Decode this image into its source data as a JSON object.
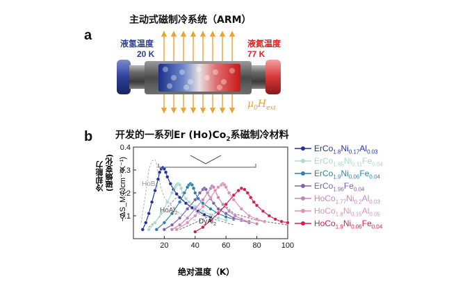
{
  "panel_a": {
    "letter": "a",
    "title": "主动式磁制冷系统（ARM）",
    "left_label": "液氢温度",
    "left_temp": "20 K",
    "right_label": "液氮温度",
    "right_temp": "77 K",
    "field_label_main": "μ",
    "field_label_sub0": "0",
    "field_label_H": "H",
    "field_label_sub": "ext",
    "colors": {
      "cold": "#2a3f8f",
      "hot": "#e02020",
      "field": "#f0a030"
    }
  },
  "panel_b": {
    "letter": "b",
    "title_pre": "开发的一系列Er (Ho)Co",
    "title_sub": "2",
    "title_post": "系磁制冷材料",
    "ylabel_cn_1": "冷却能力",
    "ylabel_cn_2": "(磁熵变化)",
    "xlabel": "绝对温度（K）"
  },
  "chart_data": {
    "type": "line",
    "xlabel": "绝对温度（K）",
    "ylabel": "−ΔS_M (Jcm⁻³K⁻¹)",
    "xlim": [
      0,
      100
    ],
    "ylim": [
      0,
      0.4
    ],
    "xticks": [
      "20",
      "40",
      "60",
      "80",
      "100"
    ],
    "yticks": [
      "0.1",
      "0.2",
      "0.3",
      "0.4"
    ],
    "legend_position": "right",
    "annotations": [
      {
        "text": "HoB",
        "sub": "2",
        "color": "#9a9a9a"
      },
      {
        "text": "HoAl",
        "sub": "2",
        "color": "#555555"
      },
      {
        "text": "DyAl",
        "sub": "2",
        "color": "#333333"
      }
    ],
    "reference_series": [
      {
        "x": [
          5,
          8,
          10,
          12,
          14,
          15,
          16,
          18,
          20,
          25,
          30,
          40
        ],
        "values": [
          0.07,
          0.2,
          0.3,
          0.34,
          0.345,
          0.33,
          0.28,
          0.22,
          0.18,
          0.14,
          0.11,
          0.08
        ],
        "color": "#b0b0b0"
      },
      {
        "x": [
          10,
          15,
          20,
          25,
          28,
          30,
          32,
          35,
          40,
          45,
          55,
          65
        ],
        "values": [
          0.05,
          0.08,
          0.12,
          0.16,
          0.18,
          0.185,
          0.17,
          0.15,
          0.12,
          0.1,
          0.08,
          0.06
        ],
        "color": "#8a8a8a"
      },
      {
        "x": [
          30,
          40,
          50,
          55,
          58,
          60,
          62,
          65,
          70,
          80,
          90,
          100
        ],
        "values": [
          0.04,
          0.07,
          0.1,
          0.12,
          0.135,
          0.14,
          0.13,
          0.11,
          0.1,
          0.08,
          0.07,
          0.06
        ],
        "color": "#666666"
      }
    ],
    "series": [
      {
        "name": "ErCo1.8Ni0.17Al0.03",
        "label": {
          "p0": "ErCo",
          "s1": "1.8",
          "p1": "Ni",
          "s2": "0.17",
          "p2": "Al",
          "s3": "0.03"
        },
        "color": "#2030a0",
        "x": [
          6,
          8,
          10,
          12,
          14,
          16,
          17,
          18,
          19,
          20,
          21,
          22,
          24,
          26,
          28,
          30,
          34,
          38,
          42,
          46,
          50
        ],
        "values": [
          0.04,
          0.07,
          0.11,
          0.16,
          0.21,
          0.26,
          0.29,
          0.305,
          0.31,
          0.305,
          0.29,
          0.27,
          0.24,
          0.215,
          0.195,
          0.18,
          0.155,
          0.135,
          0.12,
          0.105,
          0.095
        ]
      },
      {
        "name": "ErCo1.85Ni0.11Fe0.04",
        "label": {
          "p0": "ErCo",
          "s1": "1.85",
          "p1": "Ni",
          "s2": "0.11",
          "p2": "Fe",
          "s3": "0.04"
        },
        "color": "#a8d8d0",
        "x": [
          10,
          14,
          18,
          22,
          25,
          27,
          28,
          29,
          30,
          31,
          32,
          34,
          36,
          40,
          45,
          50,
          55,
          60
        ],
        "values": [
          0.04,
          0.07,
          0.11,
          0.16,
          0.2,
          0.225,
          0.235,
          0.24,
          0.235,
          0.22,
          0.2,
          0.175,
          0.16,
          0.14,
          0.12,
          0.105,
          0.09,
          0.08
        ]
      },
      {
        "name": "ErCo1.9Ni0.06Fe0.04",
        "label": {
          "p0": "ErCo",
          "s1": "1.9",
          "p1": "Ni",
          "s2": "0.06",
          "p2": "Fe",
          "s3": "0.04"
        },
        "color": "#2a80b0",
        "x": [
          15,
          20,
          25,
          30,
          33,
          35,
          36,
          37,
          38,
          39,
          40,
          42,
          45,
          50,
          55,
          60,
          65
        ],
        "values": [
          0.04,
          0.07,
          0.11,
          0.16,
          0.2,
          0.225,
          0.235,
          0.24,
          0.235,
          0.22,
          0.2,
          0.175,
          0.155,
          0.13,
          0.11,
          0.095,
          0.085
        ]
      },
      {
        "name": "ErCo1.96Fe0.04",
        "label": {
          "p0": "ErCo",
          "s1": "1.96",
          "p1": "Fe",
          "s2": "0.04",
          "p2": "",
          "s3": ""
        },
        "color": "#8060a8",
        "x": [
          20,
          25,
          30,
          35,
          40,
          43,
          45,
          46,
          47,
          48,
          50,
          52,
          55,
          60,
          65,
          70,
          75
        ],
        "values": [
          0.04,
          0.06,
          0.09,
          0.13,
          0.17,
          0.2,
          0.215,
          0.22,
          0.215,
          0.2,
          0.175,
          0.155,
          0.13,
          0.11,
          0.09,
          0.08,
          0.07
        ]
      },
      {
        "name": "HoCo1.77Ni0.2Al0.03",
        "label": {
          "p0": "HoCo",
          "s1": "1.77",
          "p1": "Ni",
          "s2": "0.2",
          "p2": "Al",
          "s3": "0.03"
        },
        "color": "#c088b8",
        "x": [
          25,
          30,
          35,
          40,
          45,
          48,
          50,
          51,
          52,
          53,
          55,
          58,
          62,
          66,
          70,
          75,
          80
        ],
        "values": [
          0.04,
          0.06,
          0.09,
          0.13,
          0.17,
          0.2,
          0.22,
          0.23,
          0.225,
          0.21,
          0.18,
          0.15,
          0.12,
          0.1,
          0.085,
          0.075,
          0.065
        ]
      },
      {
        "name": "HoCo1.8Ni0.15Al0.05",
        "label": {
          "p0": "HoCo",
          "s1": "1.8",
          "p1": "Ni",
          "s2": "0.15",
          "p2": "Al",
          "s3": "0.05"
        },
        "color": "#e090b0",
        "x": [
          28,
          35,
          40,
          45,
          50,
          53,
          55,
          57,
          58,
          59,
          60,
          62,
          65,
          70,
          75,
          80,
          85
        ],
        "values": [
          0.04,
          0.07,
          0.1,
          0.14,
          0.18,
          0.21,
          0.225,
          0.235,
          0.24,
          0.235,
          0.225,
          0.2,
          0.17,
          0.13,
          0.1,
          0.085,
          0.075
        ]
      },
      {
        "name": "HoCo1.9Ni0.06Fe0.04",
        "label": {
          "p0": "HoCo",
          "s1": "1.9",
          "p1": "Ni",
          "s2": "0.06",
          "p2": "Fe",
          "s3": "0.04"
        },
        "color": "#d02050",
        "x": [
          40,
          45,
          50,
          55,
          60,
          65,
          68,
          70,
          72,
          74,
          76,
          78,
          80,
          84,
          88,
          92,
          96,
          100
        ],
        "values": [
          0.03,
          0.05,
          0.08,
          0.11,
          0.15,
          0.19,
          0.21,
          0.22,
          0.215,
          0.2,
          0.18,
          0.16,
          0.145,
          0.12,
          0.1,
          0.085,
          0.075,
          0.07
        ]
      }
    ]
  }
}
